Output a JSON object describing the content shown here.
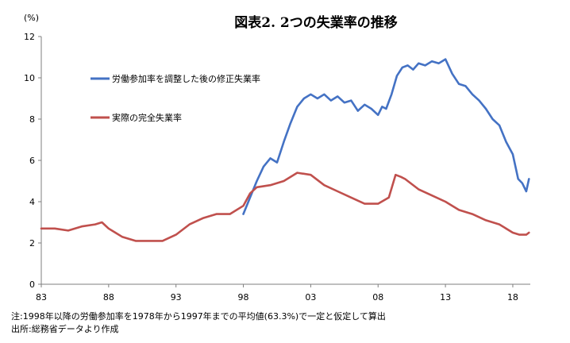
{
  "chart_data": {
    "type": "line",
    "title": "図表2. 2つの失業率の推移",
    "ylabel": "(%)",
    "xlabel": "",
    "ylim": [
      0,
      12
    ],
    "yticks": [
      "0",
      "2",
      "4",
      "6",
      "8",
      "10",
      "12"
    ],
    "xlim": [
      1983,
      2019.3
    ],
    "xticks": [
      {
        "label": "83",
        "year": 1983
      },
      {
        "label": "88",
        "year": 1988
      },
      {
        "label": "93",
        "year": 1993
      },
      {
        "label": "98",
        "year": 1998
      },
      {
        "label": "03",
        "year": 2003
      },
      {
        "label": "08",
        "year": 2008
      },
      {
        "label": "13",
        "year": 2013
      },
      {
        "label": "18",
        "year": 2018
      }
    ],
    "grid": false,
    "legend": "upper-left inside plot",
    "series": [
      {
        "name": "労働参加率を調整した後の修正失業率",
        "color": "#4472C4",
        "x": [
          1998.0,
          1998.5,
          1999.0,
          1999.5,
          2000.0,
          2000.5,
          2001.0,
          2001.5,
          2002.0,
          2002.5,
          2003.0,
          2003.5,
          2004.0,
          2004.5,
          2005.0,
          2005.5,
          2006.0,
          2006.5,
          2007.0,
          2007.5,
          2008.0,
          2008.3,
          2008.6,
          2009.0,
          2009.4,
          2009.8,
          2010.2,
          2010.6,
          2011.0,
          2011.5,
          2012.0,
          2012.5,
          2013.0,
          2013.5,
          2014.0,
          2014.5,
          2015.0,
          2015.5,
          2016.0,
          2016.5,
          2017.0,
          2017.5,
          2018.0,
          2018.4,
          2018.7,
          2019.0,
          2019.2
        ],
        "values": [
          3.4,
          4.2,
          5.0,
          5.7,
          6.1,
          5.9,
          6.9,
          7.8,
          8.6,
          9.0,
          9.2,
          9.0,
          9.2,
          8.9,
          9.1,
          8.8,
          8.9,
          8.4,
          8.7,
          8.5,
          8.2,
          8.6,
          8.5,
          9.2,
          10.1,
          10.5,
          10.6,
          10.4,
          10.7,
          10.6,
          10.8,
          10.7,
          10.9,
          10.2,
          9.7,
          9.6,
          9.2,
          8.9,
          8.5,
          8.0,
          7.7,
          6.9,
          6.3,
          5.1,
          4.9,
          4.5,
          5.1
        ]
      },
      {
        "name": "実際の完全失業率",
        "color": "#C0504D",
        "x": [
          1983.0,
          1984.0,
          1985.0,
          1986.0,
          1987.0,
          1987.5,
          1988.0,
          1988.5,
          1989.0,
          1990.0,
          1991.0,
          1992.0,
          1993.0,
          1994.0,
          1995.0,
          1996.0,
          1997.0,
          1998.0,
          1998.5,
          1999.0,
          2000.0,
          2001.0,
          2002.0,
          2003.0,
          2004.0,
          2005.0,
          2006.0,
          2007.0,
          2008.0,
          2008.8,
          2009.3,
          2009.7,
          2010.0,
          2011.0,
          2012.0,
          2013.0,
          2014.0,
          2015.0,
          2016.0,
          2017.0,
          2018.0,
          2018.5,
          2019.0,
          2019.2
        ],
        "values": [
          2.7,
          2.7,
          2.6,
          2.8,
          2.9,
          3.0,
          2.7,
          2.5,
          2.3,
          2.1,
          2.1,
          2.1,
          2.4,
          2.9,
          3.2,
          3.4,
          3.4,
          3.8,
          4.4,
          4.7,
          4.8,
          5.0,
          5.4,
          5.3,
          4.8,
          4.5,
          4.2,
          3.9,
          3.9,
          4.2,
          5.3,
          5.2,
          5.1,
          4.6,
          4.3,
          4.0,
          3.6,
          3.4,
          3.1,
          2.9,
          2.5,
          2.4,
          2.4,
          2.5
        ]
      }
    ]
  },
  "notes": {
    "note1": "注:1998年以降の労働参加率を1978年から1997年までの平均値(63.3%)で一定と仮定して算出",
    "note2": "出所:総務省データより作成"
  }
}
